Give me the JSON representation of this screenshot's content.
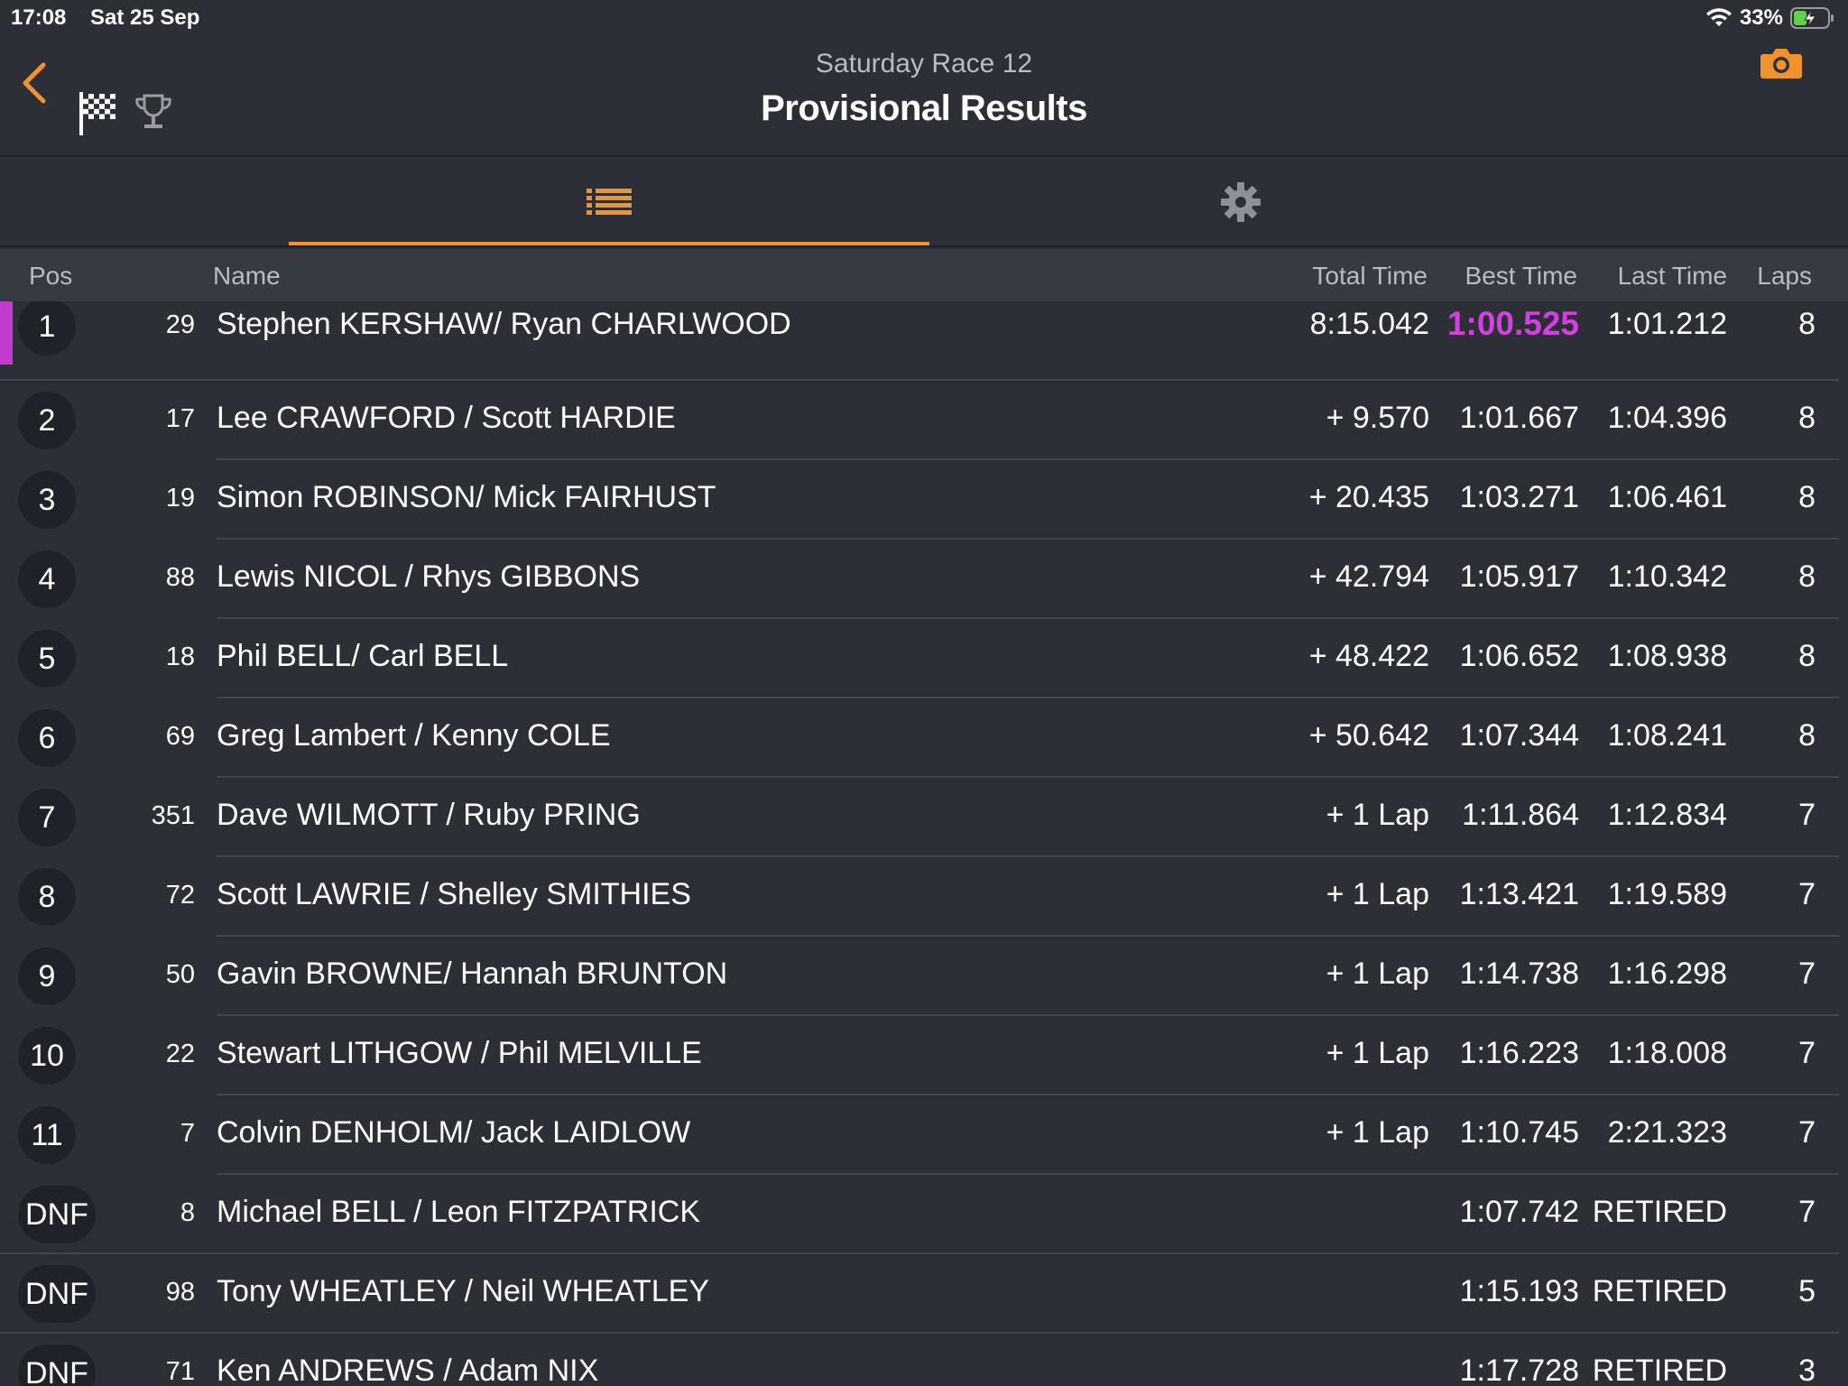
{
  "status_bar": {
    "time": "17:08",
    "date": "Sat 25 Sep",
    "battery": "33%"
  },
  "header": {
    "subtitle": "Saturday Race 12",
    "title": "Provisional Results"
  },
  "colors": {
    "accent": "#f0922e",
    "fastest_lap": "#d43fe0",
    "background": "#2c2f36"
  },
  "columns": {
    "pos": "Pos",
    "name": "Name",
    "total": "Total Time",
    "best": "Best Time",
    "last": "Last Time",
    "laps": "Laps"
  },
  "rows": [
    {
      "pos": "1",
      "num": "29",
      "name": "Stephen KERSHAW/ Ryan CHARLWOOD",
      "total": "8:15.042",
      "best": "1:00.525",
      "last": "1:01.212",
      "laps": "8",
      "fastest": true
    },
    {
      "pos": "2",
      "num": "17",
      "name": "Lee CRAWFORD / Scott HARDIE",
      "total": "+ 9.570",
      "best": "1:01.667",
      "last": "1:04.396",
      "laps": "8"
    },
    {
      "pos": "3",
      "num": "19",
      "name": "Simon ROBINSON/ Mick FAIRHUST",
      "total": "+ 20.435",
      "best": "1:03.271",
      "last": "1:06.461",
      "laps": "8"
    },
    {
      "pos": "4",
      "num": "88",
      "name": "Lewis NICOL / Rhys GIBBONS",
      "total": "+ 42.794",
      "best": "1:05.917",
      "last": "1:10.342",
      "laps": "8"
    },
    {
      "pos": "5",
      "num": "18",
      "name": "Phil BELL/ Carl BELL",
      "total": "+ 48.422",
      "best": "1:06.652",
      "last": "1:08.938",
      "laps": "8"
    },
    {
      "pos": "6",
      "num": "69",
      "name": "Greg Lambert / Kenny COLE",
      "total": "+ 50.642",
      "best": "1:07.344",
      "last": "1:08.241",
      "laps": "8"
    },
    {
      "pos": "7",
      "num": "351",
      "name": "Dave WILMOTT /  Ruby PRING",
      "total": "+ 1 Lap",
      "best": "1:11.864",
      "last": "1:12.834",
      "laps": "7"
    },
    {
      "pos": "8",
      "num": "72",
      "name": "Scott LAWRIE / Shelley SMITHIES",
      "total": "+ 1 Lap",
      "best": "1:13.421",
      "last": "1:19.589",
      "laps": "7"
    },
    {
      "pos": "9",
      "num": "50",
      "name": "Gavin BROWNE/ Hannah BRUNTON",
      "total": "+ 1 Lap",
      "best": "1:14.738",
      "last": "1:16.298",
      "laps": "7"
    },
    {
      "pos": "10",
      "num": "22",
      "name": "Stewart LITHGOW / Phil MELVILLE",
      "total": "+ 1 Lap",
      "best": "1:16.223",
      "last": "1:18.008",
      "laps": "7"
    },
    {
      "pos": "11",
      "num": "7",
      "name": "Colvin DENHOLM/ Jack LAIDLOW",
      "total": "+ 1 Lap",
      "best": "1:10.745",
      "last": "2:21.323",
      "laps": "7"
    },
    {
      "pos": "DNF",
      "num": "8",
      "name": "Michael BELL / Leon FITZPATRICK",
      "total": "",
      "best": "1:07.742",
      "last": "RETIRED",
      "laps": "7"
    },
    {
      "pos": "DNF",
      "num": "98",
      "name": "Tony WHEATLEY / Neil WHEATLEY",
      "total": "",
      "best": "1:15.193",
      "last": "RETIRED",
      "laps": "5"
    },
    {
      "pos": "DNF",
      "num": "71",
      "name": "Ken ANDREWS / Adam NIX",
      "total": "",
      "best": "1:17.728",
      "last": "RETIRED",
      "laps": "3"
    }
  ]
}
